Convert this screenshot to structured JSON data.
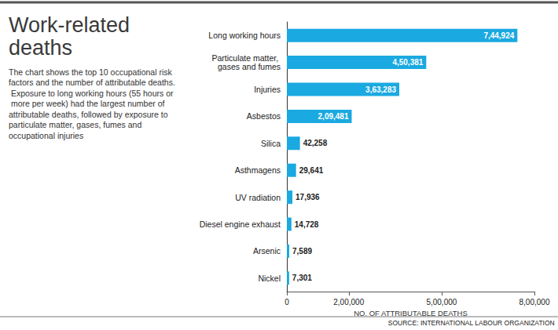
{
  "chart_data": {
    "type": "bar",
    "orientation": "horizontal",
    "title": "Work-related deaths",
    "subtitle": "The chart shows the top 10 occupational risk factors and the number of attributable deaths. Exposure to long working hours (55 hours or more per week) had the largest number of attributable deaths, followed by exposure to particulate matter, gases, fumes and occupational injuries",
    "categories": [
      "Long working hours",
      "Particulate matter, gases and fumes",
      "Injuries",
      "Asbestos",
      "Silica",
      "Asthmagens",
      "UV radiation",
      "Diesel engine exhaust",
      "Arsenic",
      "Nickel"
    ],
    "values": [
      744924,
      450381,
      363283,
      209481,
      42258,
      29641,
      17936,
      14728,
      7589,
      7301
    ],
    "value_labels": [
      "7,44,924",
      "4,50,381",
      "3,63,283",
      "2,09,481",
      "42,258",
      "29,641",
      "17,936",
      "14,728",
      "7,589",
      "7,301"
    ],
    "data_labels": true,
    "color": "#1aa9e0",
    "xlabel": "NO. OF ATTRIBUTABLE DEATHS",
    "xlim": [
      0,
      800000
    ],
    "xticks": [
      0,
      {
        "value": 200000,
        "label": "2,00,000"
      },
      {
        "value": 500000,
        "label": "5,00,000"
      },
      {
        "value": 800000,
        "label": "8,00,000"
      }
    ],
    "grid": false,
    "source": "SOURCE: INTERNATIONAL LABOUR ORGANIZATION"
  }
}
